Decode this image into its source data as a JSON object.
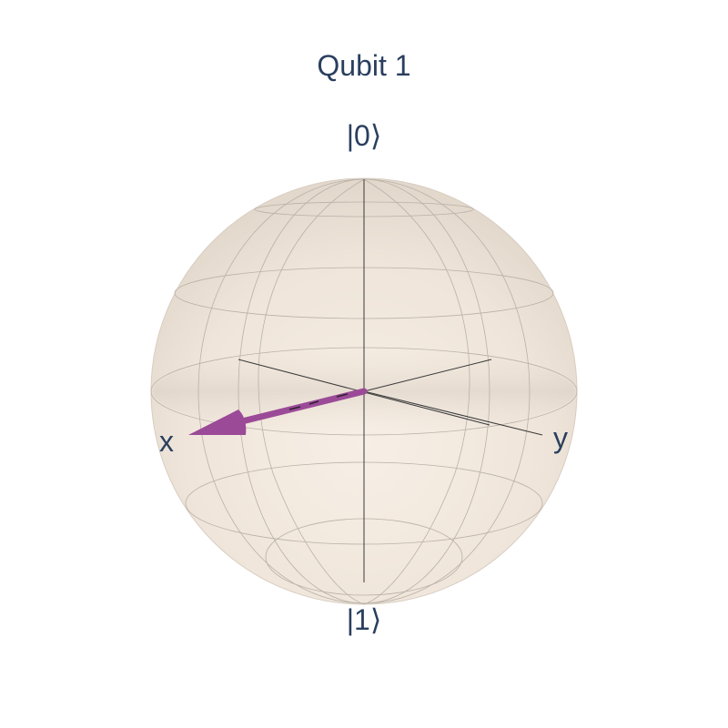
{
  "title": "Qubit 1",
  "labels": {
    "north_pole": "|0⟩",
    "south_pole": "|1⟩",
    "x_axis": "x",
    "y_axis": "y"
  },
  "colors": {
    "text": "#2a3f5f",
    "sphere_fill": "#efe4d9",
    "sphere_fill_light": "#f6ede3",
    "grid_line": "#b9b1a8",
    "axis_line": "#3a3a3a",
    "state_vector": "#9b4a98"
  },
  "chart_data": {
    "type": "bloch-sphere",
    "title": "Qubit 1",
    "state_vector": {
      "x": 1,
      "y": 0,
      "z": 0
    }
  }
}
